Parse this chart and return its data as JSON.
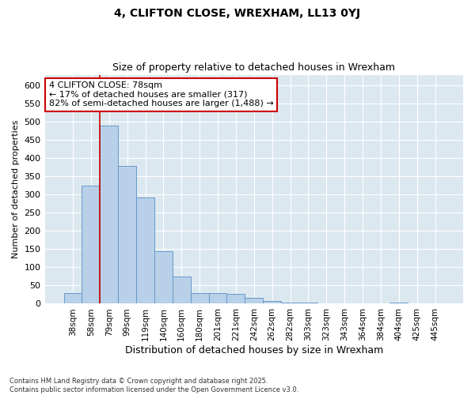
{
  "title1": "4, CLIFTON CLOSE, WREXHAM, LL13 0YJ",
  "title2": "Size of property relative to detached houses in Wrexham",
  "xlabel": "Distribution of detached houses by size in Wrexham",
  "ylabel": "Number of detached properties",
  "footnote": "Contains HM Land Registry data © Crown copyright and database right 2025.\nContains public sector information licensed under the Open Government Licence v3.0.",
  "bar_labels": [
    "38sqm",
    "58sqm",
    "79sqm",
    "99sqm",
    "119sqm",
    "140sqm",
    "160sqm",
    "180sqm",
    "201sqm",
    "221sqm",
    "242sqm",
    "262sqm",
    "282sqm",
    "303sqm",
    "323sqm",
    "343sqm",
    "364sqm",
    "384sqm",
    "404sqm",
    "425sqm",
    "445sqm"
  ],
  "bar_values": [
    30,
    325,
    490,
    380,
    293,
    145,
    75,
    30,
    30,
    28,
    17,
    8,
    4,
    3,
    2,
    1,
    1,
    1,
    4,
    1,
    1
  ],
  "bar_color": "#b8d0e8",
  "bar_edge_color": "#6699cc",
  "fig_bg_color": "#ffffff",
  "ax_bg_color": "#dce8f0",
  "grid_color": "#ffffff",
  "annotation_text": "4 CLIFTON CLOSE: 78sqm\n← 17% of detached houses are smaller (317)\n82% of semi-detached houses are larger (1,488) →",
  "annotation_box_color": "#ffffff",
  "annotation_border_color": "#cc0000",
  "red_line_bar_index": 2,
  "ylim": [
    0,
    630
  ],
  "yticks": [
    0,
    50,
    100,
    150,
    200,
    250,
    300,
    350,
    400,
    450,
    500,
    550,
    600
  ]
}
